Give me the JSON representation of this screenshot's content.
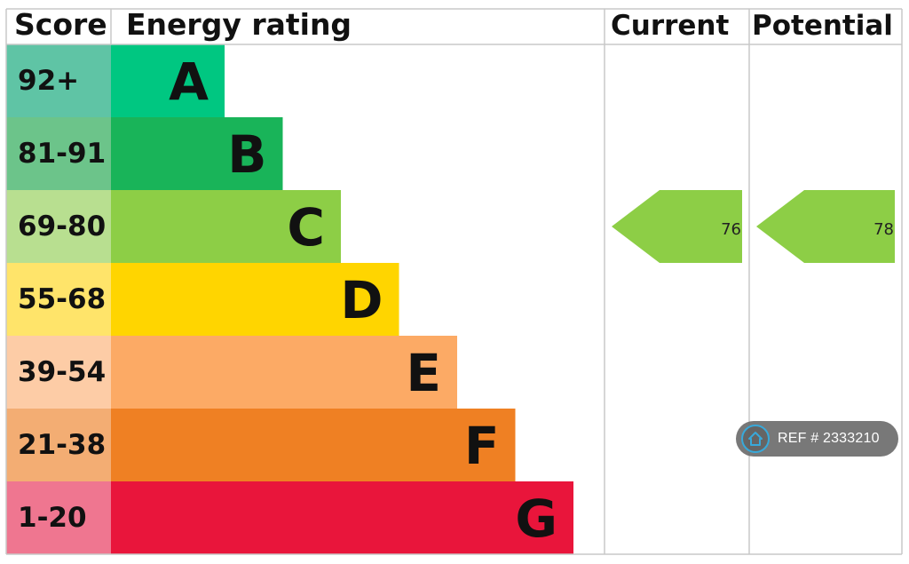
{
  "headers": {
    "score": "Score",
    "rating": "Energy rating",
    "current": "Current",
    "potential": "Potential"
  },
  "chart_data": {
    "type": "bar",
    "bands": [
      {
        "letter": "A",
        "range": "92+",
        "bar_color": "#00c781",
        "score_color": "#5fc4a5"
      },
      {
        "letter": "B",
        "range": "81-91",
        "bar_color": "#19b459",
        "score_color": "#6cc48a"
      },
      {
        "letter": "C",
        "range": "69-80",
        "bar_color": "#8dce46",
        "score_color": "#b8df90"
      },
      {
        "letter": "D",
        "range": "55-68",
        "bar_color": "#ffd500",
        "score_color": "#ffe46a"
      },
      {
        "letter": "E",
        "range": "39-54",
        "bar_color": "#fcaa65",
        "score_color": "#fdcca6"
      },
      {
        "letter": "F",
        "range": "21-38",
        "bar_color": "#ef8023",
        "score_color": "#f3ad73"
      },
      {
        "letter": "G",
        "range": "1-20",
        "bar_color": "#e9153b",
        "score_color": "#ef7690"
      }
    ],
    "current": {
      "value": 76,
      "band": "C",
      "color": "#8dce46"
    },
    "potential": {
      "value": 78,
      "band": "C",
      "color": "#8dce46"
    }
  },
  "watermark": {
    "text": "REF # 2333210",
    "icon": "house-icon"
  }
}
